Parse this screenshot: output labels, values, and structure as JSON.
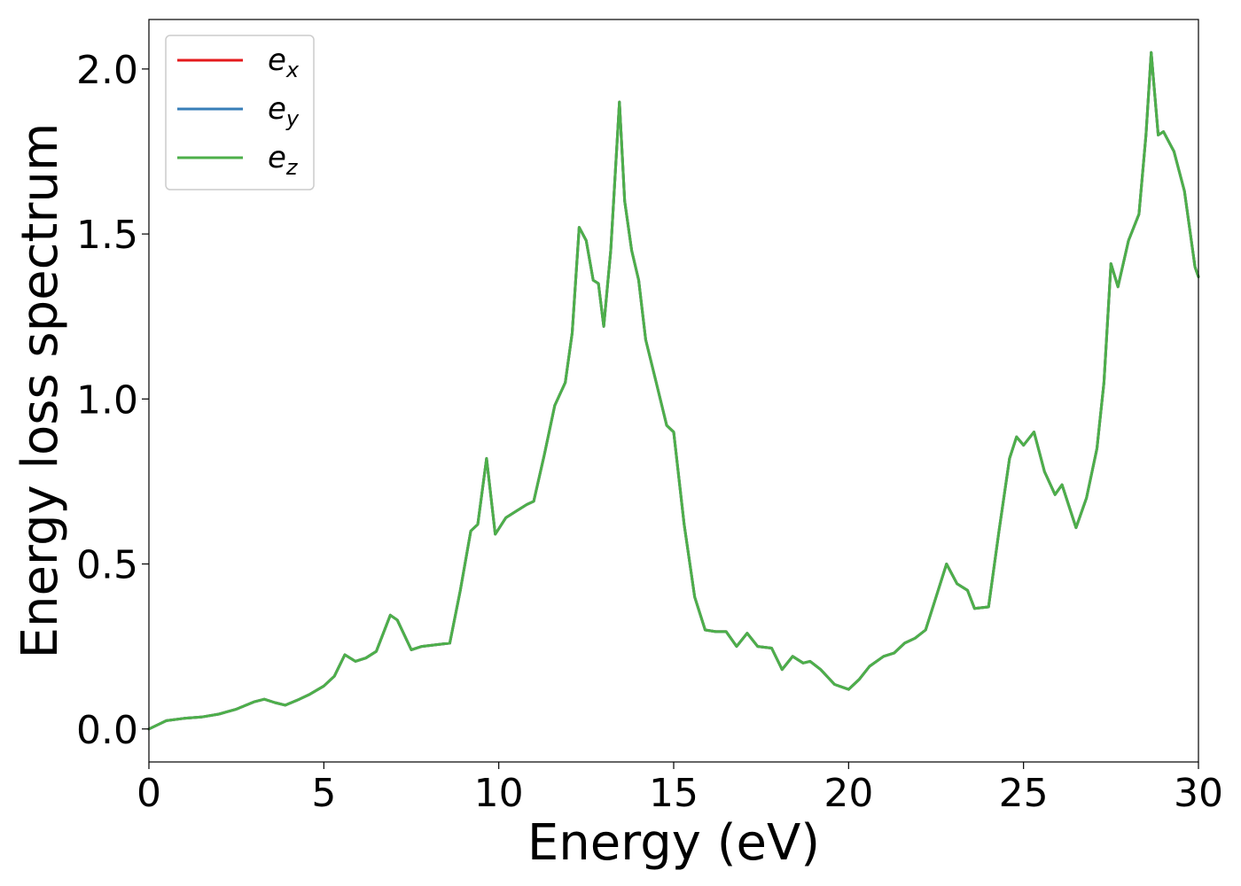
{
  "chart_data": {
    "type": "line",
    "title": "",
    "xlabel": "Energy (eV)",
    "ylabel": "Energy loss spectrum",
    "xlim": [
      0,
      30
    ],
    "ylim": [
      -0.1,
      2.15
    ],
    "xticks": [
      0,
      5,
      10,
      15,
      20,
      25,
      30
    ],
    "xtick_labels": [
      "0",
      "5",
      "10",
      "15",
      "20",
      "25",
      "30"
    ],
    "yticks": [
      0.0,
      0.5,
      1.0,
      1.5,
      2.0
    ],
    "ytick_labels": [
      "0.0",
      "0.5",
      "1.0",
      "1.5",
      "2.0"
    ],
    "grid": false,
    "legend_position": "top-left",
    "series": [
      {
        "name": "e_x",
        "label_base": "e",
        "label_sub": "x",
        "color": "#e41a1c"
      },
      {
        "name": "e_y",
        "label_base": "e",
        "label_sub": "y",
        "color": "#377eb8"
      },
      {
        "name": "e_z",
        "label_base": "e",
        "label_sub": "z",
        "color": "#4daf4a"
      }
    ],
    "x": [
      0,
      0.5,
      1.0,
      1.5,
      2.0,
      2.5,
      3.0,
      3.3,
      3.6,
      3.9,
      4.3,
      4.6,
      5.0,
      5.3,
      5.6,
      5.9,
      6.2,
      6.5,
      6.9,
      7.1,
      7.5,
      7.8,
      8.2,
      8.6,
      8.9,
      9.2,
      9.4,
      9.65,
      9.9,
      10.2,
      10.5,
      10.8,
      11.0,
      11.3,
      11.6,
      11.9,
      12.1,
      12.3,
      12.5,
      12.7,
      12.85,
      13.0,
      13.2,
      13.45,
      13.6,
      13.8,
      14.0,
      14.2,
      14.5,
      14.8,
      15.0,
      15.3,
      15.6,
      15.9,
      16.2,
      16.5,
      16.8,
      17.1,
      17.4,
      17.8,
      18.1,
      18.4,
      18.7,
      18.9,
      19.2,
      19.6,
      20.0,
      20.3,
      20.6,
      21.0,
      21.3,
      21.6,
      21.9,
      22.2,
      22.5,
      22.8,
      23.1,
      23.4,
      23.6,
      24.0,
      24.3,
      24.6,
      24.8,
      25.0,
      25.3,
      25.6,
      25.9,
      26.1,
      26.5,
      26.8,
      27.1,
      27.3,
      27.5,
      27.7,
      28.0,
      28.3,
      28.5,
      28.65,
      28.85,
      29.0,
      29.3,
      29.6,
      29.9,
      30.0
    ],
    "y": [
      0.0,
      0.025,
      0.032,
      0.036,
      0.045,
      0.06,
      0.082,
      0.09,
      0.08,
      0.072,
      0.09,
      0.105,
      0.13,
      0.16,
      0.225,
      0.205,
      0.215,
      0.235,
      0.345,
      0.33,
      0.24,
      0.25,
      0.255,
      0.26,
      0.42,
      0.6,
      0.62,
      0.82,
      0.59,
      0.64,
      0.66,
      0.68,
      0.69,
      0.83,
      0.98,
      1.05,
      1.2,
      1.52,
      1.48,
      1.36,
      1.35,
      1.22,
      1.45,
      1.9,
      1.6,
      1.45,
      1.36,
      1.18,
      1.05,
      0.92,
      0.9,
      0.62,
      0.4,
      0.3,
      0.295,
      0.295,
      0.25,
      0.29,
      0.25,
      0.245,
      0.18,
      0.22,
      0.2,
      0.205,
      0.18,
      0.135,
      0.12,
      0.15,
      0.19,
      0.22,
      0.23,
      0.26,
      0.275,
      0.3,
      0.4,
      0.5,
      0.44,
      0.42,
      0.365,
      0.37,
      0.6,
      0.82,
      0.885,
      0.86,
      0.9,
      0.78,
      0.71,
      0.74,
      0.61,
      0.7,
      0.85,
      1.05,
      1.41,
      1.34,
      1.48,
      1.56,
      1.8,
      2.05,
      1.8,
      1.81,
      1.75,
      1.63,
      1.4,
      1.37
    ]
  }
}
